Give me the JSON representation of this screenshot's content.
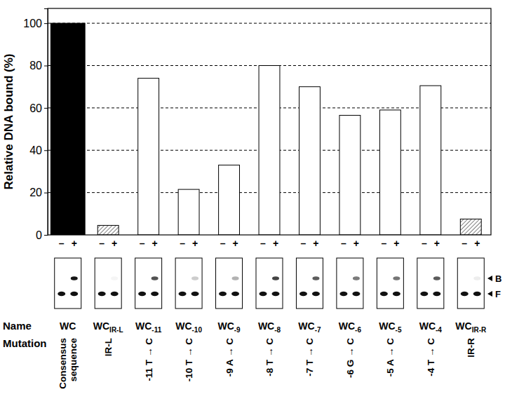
{
  "chart_data": {
    "type": "bar",
    "y_label": "Relative DNA bound (%)",
    "categories": [
      "Consensus\nsequence",
      "IR-L",
      "-11 T → C",
      "-10 T → C",
      "-9 A → C",
      "-8 T → C",
      "-7 T → C",
      "-6 G → C",
      "-5 A → C",
      "-4 T → C",
      "IR-R"
    ],
    "names": [
      {
        "text": "WC"
      },
      {
        "text": "WC",
        "sub": "IR-L"
      },
      {
        "text": "WC",
        "sub": "-11"
      },
      {
        "text": "WC",
        "sub": "-10"
      },
      {
        "text": "WC",
        "sub": "-9"
      },
      {
        "text": "WC",
        "sub": "-8"
      },
      {
        "text": "WC",
        "sub": "-7"
      },
      {
        "text": "WC",
        "sub": "-6"
      },
      {
        "text": "WC",
        "sub": "-5"
      },
      {
        "text": "WC",
        "sub": "-4"
      },
      {
        "text": "WC",
        "sub": "IR-R"
      }
    ],
    "values": [
      100,
      4.5,
      74,
      21.5,
      33,
      80,
      70,
      56.5,
      59,
      70.5,
      7.5
    ],
    "colors": [
      "#000000",
      "#808080",
      "#ffffff",
      "#ffffff",
      "#ffffff",
      "#ffffff",
      "#ffffff",
      "#ffffff",
      "#ffffff",
      "#ffffff",
      "#808080"
    ],
    "ylim": [
      0,
      107
    ],
    "yticks": [
      0,
      20,
      40,
      60,
      80,
      100
    ],
    "grid": true,
    "lane_labels": [
      "–",
      "+"
    ],
    "band_labels": [
      "B",
      "F"
    ],
    "row_labels": [
      "Name",
      "Mutation"
    ]
  }
}
